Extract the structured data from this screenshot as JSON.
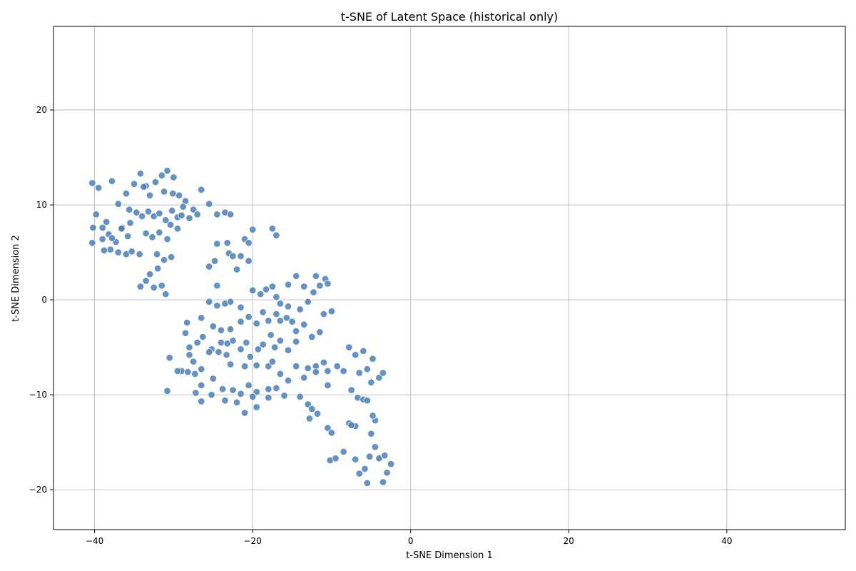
{
  "chart_data": {
    "type": "scatter",
    "title": "t-SNE of Latent Space (historical only)",
    "xlabel": "t-SNE Dimension 1",
    "ylabel": "t-SNE Dimension 2",
    "xlim": [
      -45.2,
      55.0
    ],
    "ylim": [
      -24.2,
      28.8
    ],
    "xticks": [
      -40,
      -20,
      0,
      20,
      40
    ],
    "yticks": [
      -20,
      -10,
      0,
      10,
      20
    ],
    "xtick_labels": [
      "−40",
      "−20",
      "0",
      "20",
      "40"
    ],
    "ytick_labels": [
      "−20",
      "−10",
      "0",
      "10",
      "20"
    ],
    "grid": true,
    "point_color": "#4a7fb5",
    "series": [
      {
        "points": [
          [
            -40.3,
            12.3
          ],
          [
            -39.5,
            11.8
          ],
          [
            -38.5,
            8.2
          ],
          [
            -37.8,
            12.5
          ],
          [
            -37.0,
            10.1
          ],
          [
            -36.0,
            11.2
          ],
          [
            -35.0,
            12.2
          ],
          [
            -34.2,
            13.3
          ],
          [
            -33.5,
            12.0
          ],
          [
            -33.0,
            11.0
          ],
          [
            -32.3,
            12.4
          ],
          [
            -31.5,
            13.1
          ],
          [
            -30.8,
            13.6
          ],
          [
            -30.0,
            12.9
          ],
          [
            -29.3,
            11.0
          ],
          [
            -28.5,
            10.4
          ],
          [
            -27.5,
            9.5
          ],
          [
            -26.5,
            11.6
          ],
          [
            -39.8,
            9.0
          ],
          [
            -39.0,
            7.6
          ],
          [
            -38.2,
            6.9
          ],
          [
            -37.3,
            6.1
          ],
          [
            -36.5,
            7.6
          ],
          [
            -35.5,
            8.1
          ],
          [
            -34.7,
            9.2
          ],
          [
            -34.0,
            8.8
          ],
          [
            -33.2,
            9.3
          ],
          [
            -32.5,
            8.8
          ],
          [
            -31.8,
            9.1
          ],
          [
            -31.0,
            8.4
          ],
          [
            -30.2,
            9.4
          ],
          [
            -29.5,
            8.7
          ],
          [
            -28.8,
            9.8
          ],
          [
            -28.0,
            8.6
          ],
          [
            -27.0,
            9.0
          ],
          [
            -40.2,
            7.6
          ],
          [
            -40.3,
            6.0
          ],
          [
            -39.0,
            6.4
          ],
          [
            -38.0,
            5.3
          ],
          [
            -37.0,
            5.0
          ],
          [
            -36.0,
            4.8
          ],
          [
            -35.3,
            5.1
          ],
          [
            -34.3,
            4.8
          ],
          [
            -33.5,
            2.0
          ],
          [
            -32.5,
            1.3
          ],
          [
            -31.5,
            1.5
          ],
          [
            -31.0,
            0.6
          ],
          [
            -34.2,
            1.4
          ],
          [
            -32.0,
            3.3
          ],
          [
            -31.2,
            4.2
          ],
          [
            -30.3,
            4.5
          ],
          [
            -30.8,
            6.4
          ],
          [
            -29.5,
            7.5
          ],
          [
            -32.7,
            6.6
          ],
          [
            -33.5,
            7.0
          ],
          [
            -35.8,
            6.7
          ],
          [
            -36.6,
            7.5
          ],
          [
            -37.8,
            6.5
          ],
          [
            -38.8,
            5.2
          ],
          [
            -32.1,
            4.8
          ],
          [
            -33.0,
            2.7
          ],
          [
            -31.8,
            7.1
          ],
          [
            -30.4,
            7.9
          ],
          [
            -29.0,
            8.9
          ],
          [
            -35.6,
            9.5
          ],
          [
            -33.8,
            11.9
          ],
          [
            -31.2,
            11.4
          ],
          [
            -30.1,
            11.2
          ],
          [
            -25.5,
            10.1
          ],
          [
            -24.5,
            9.0
          ],
          [
            -23.5,
            9.2
          ],
          [
            -22.8,
            9.0
          ],
          [
            -24.5,
            5.9
          ],
          [
            -23.2,
            6.0
          ],
          [
            -21.0,
            6.4
          ],
          [
            -20.5,
            6.0
          ],
          [
            -20.0,
            7.4
          ],
          [
            -17.5,
            7.5
          ],
          [
            -17.0,
            6.8
          ],
          [
            -25.5,
            3.5
          ],
          [
            -24.8,
            4.1
          ],
          [
            -23.0,
            4.9
          ],
          [
            -22.5,
            4.6
          ],
          [
            -21.5,
            4.6
          ],
          [
            -20.5,
            4.1
          ],
          [
            -22.0,
            3.2
          ],
          [
            -24.5,
            1.5
          ],
          [
            -25.5,
            -0.2
          ],
          [
            -24.5,
            -0.6
          ],
          [
            -23.5,
            -0.4
          ],
          [
            -22.8,
            -0.2
          ],
          [
            -21.5,
            -0.8
          ],
          [
            -20.0,
            1.0
          ],
          [
            -19.0,
            0.6
          ],
          [
            -18.3,
            1.1
          ],
          [
            -17.5,
            1.4
          ],
          [
            -17.0,
            0.3
          ],
          [
            -16.5,
            -0.4
          ],
          [
            -15.5,
            -0.7
          ],
          [
            -26.5,
            -1.9
          ],
          [
            -25.0,
            -2.8
          ],
          [
            -24.0,
            -3.2
          ],
          [
            -22.8,
            -3.1
          ],
          [
            -21.5,
            -2.3
          ],
          [
            -20.5,
            -1.8
          ],
          [
            -19.5,
            -2.5
          ],
          [
            -18.7,
            -1.3
          ],
          [
            -18.0,
            -2.2
          ],
          [
            -17.0,
            -1.5
          ],
          [
            -16.5,
            -2.2
          ],
          [
            -15.7,
            -1.9
          ],
          [
            -28.3,
            -2.4
          ],
          [
            -28.5,
            -3.5
          ],
          [
            -28.0,
            -5.0
          ],
          [
            -27.0,
            -4.5
          ],
          [
            -26.3,
            -3.9
          ],
          [
            -25.2,
            -5.2
          ],
          [
            -24.0,
            -4.5
          ],
          [
            -23.2,
            -4.6
          ],
          [
            -22.5,
            -4.3
          ],
          [
            -21.5,
            -5.2
          ],
          [
            -20.8,
            -4.5
          ],
          [
            -19.3,
            -5.2
          ],
          [
            -18.7,
            -4.7
          ],
          [
            -17.7,
            -3.7
          ],
          [
            -17.2,
            -5.0
          ],
          [
            -16.5,
            -4.3
          ],
          [
            -30.5,
            -6.1
          ],
          [
            -29.0,
            -7.5
          ],
          [
            -28.0,
            -5.8
          ],
          [
            -27.5,
            -6.5
          ],
          [
            -26.5,
            -7.3
          ],
          [
            -25.5,
            -5.5
          ],
          [
            -24.3,
            -5.5
          ],
          [
            -23.3,
            -5.8
          ],
          [
            -22.8,
            -6.8
          ],
          [
            -21.0,
            -7.0
          ],
          [
            -20.3,
            -6.0
          ],
          [
            -19.5,
            -6.9
          ],
          [
            -18.0,
            -7.0
          ],
          [
            -17.5,
            -6.5
          ],
          [
            -16.5,
            -7.8
          ],
          [
            -30.8,
            -9.6
          ],
          [
            -29.5,
            -7.5
          ],
          [
            -28.2,
            -7.6
          ],
          [
            -27.3,
            -7.8
          ],
          [
            -26.5,
            -9.0
          ],
          [
            -25.0,
            -8.3
          ],
          [
            -23.8,
            -9.4
          ],
          [
            -22.5,
            -9.5
          ],
          [
            -21.5,
            -9.9
          ],
          [
            -20.5,
            -9.0
          ],
          [
            -19.5,
            -9.7
          ],
          [
            -18.0,
            -9.4
          ],
          [
            -17.0,
            -9.3
          ],
          [
            -16.0,
            -10.1
          ],
          [
            -27.2,
            -9.8
          ],
          [
            -26.5,
            -10.7
          ],
          [
            -25.2,
            -10.0
          ],
          [
            -23.5,
            -10.6
          ],
          [
            -22.0,
            -10.8
          ],
          [
            -21.0,
            -11.9
          ],
          [
            -20.0,
            -10.2
          ],
          [
            -19.5,
            -11.3
          ],
          [
            -18.0,
            -10.3
          ],
          [
            -15.5,
            1.6
          ],
          [
            -14.5,
            2.5
          ],
          [
            -13.5,
            1.4
          ],
          [
            -12.3,
            0.8
          ],
          [
            -11.5,
            1.5
          ],
          [
            -10.8,
            2.2
          ],
          [
            -10.5,
            1.7
          ],
          [
            -12.0,
            2.5
          ],
          [
            -13.0,
            -0.2
          ],
          [
            -14.0,
            -1.0
          ],
          [
            -15.0,
            -2.3
          ],
          [
            -14.5,
            -3.3
          ],
          [
            -13.5,
            -2.6
          ],
          [
            -12.5,
            -3.9
          ],
          [
            -11.5,
            -3.4
          ],
          [
            -11.0,
            -1.5
          ],
          [
            -10.0,
            -1.2
          ],
          [
            -15.5,
            -5.3
          ],
          [
            -14.5,
            -4.4
          ],
          [
            -13.0,
            -7.2
          ],
          [
            -12.0,
            -7.0
          ],
          [
            -11.0,
            -6.6
          ],
          [
            -10.5,
            -7.5
          ],
          [
            -15.5,
            -8.5
          ],
          [
            -14.5,
            -7.0
          ],
          [
            -13.5,
            -8.2
          ],
          [
            -12.0,
            -7.6
          ],
          [
            -10.5,
            -9.0
          ],
          [
            -9.3,
            -7.0
          ],
          [
            -8.5,
            -7.5
          ],
          [
            -14.0,
            -10.2
          ],
          [
            -13.0,
            -11.0
          ],
          [
            -12.5,
            -11.5
          ],
          [
            -11.8,
            -12.0
          ],
          [
            -12.8,
            -12.5
          ],
          [
            -10.5,
            -13.5
          ],
          [
            -10.0,
            -14.0
          ],
          [
            -10.2,
            -16.9
          ],
          [
            -9.5,
            -16.7
          ],
          [
            -8.5,
            -16.0
          ],
          [
            -7.8,
            -13.0
          ],
          [
            -7.0,
            -13.3
          ],
          [
            -7.5,
            -13.2
          ],
          [
            -6.7,
            -10.3
          ],
          [
            -6.0,
            -10.5
          ],
          [
            -5.5,
            -10.6
          ],
          [
            -7.5,
            -9.5
          ],
          [
            -7.8,
            -5.0
          ],
          [
            -7.0,
            -5.8
          ],
          [
            -6.5,
            -7.7
          ],
          [
            -6.0,
            -5.4
          ],
          [
            -5.5,
            -7.3
          ],
          [
            -5.0,
            -8.7
          ],
          [
            -4.0,
            -8.2
          ],
          [
            -3.5,
            -7.7
          ],
          [
            -4.8,
            -6.2
          ],
          [
            -7.0,
            -16.8
          ],
          [
            -6.5,
            -18.3
          ],
          [
            -5.5,
            -19.3
          ],
          [
            -5.2,
            -16.5
          ],
          [
            -4.5,
            -15.5
          ],
          [
            -4.0,
            -16.7
          ],
          [
            -3.5,
            -19.2
          ],
          [
            -3.0,
            -18.2
          ],
          [
            -2.5,
            -17.3
          ],
          [
            -5.0,
            -14.1
          ],
          [
            -4.5,
            -12.7
          ],
          [
            -4.8,
            -12.2
          ],
          [
            -5.8,
            -17.8
          ],
          [
            -3.3,
            -16.4
          ]
        ]
      }
    ]
  }
}
